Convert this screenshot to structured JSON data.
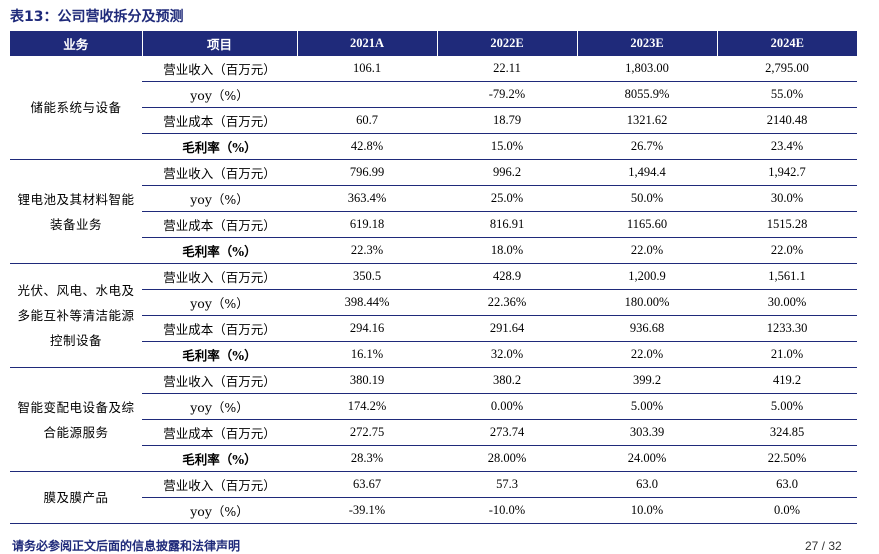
{
  "title": "表13：公司营收拆分及预测",
  "headers": [
    "业务",
    "项目",
    "2021A",
    "2022E",
    "2023E",
    "2024E"
  ],
  "groups": [
    {
      "business": "储能系统与设备",
      "rows": [
        {
          "item": "营业收入（百万元）",
          "values": [
            "106.1",
            "22.11",
            "1,803.00",
            "2,795.00"
          ]
        },
        {
          "item": "yoy（%）",
          "values": [
            "",
            "-79.2%",
            "8055.9%",
            "55.0%"
          ]
        },
        {
          "item": "营业成本（百万元）",
          "values": [
            "60.7",
            "18.79",
            "1321.62",
            "2140.48"
          ]
        },
        {
          "item": "毛利率（%）",
          "values": [
            "42.8%",
            "15.0%",
            "26.7%",
            "23.4%"
          ],
          "bold": true
        }
      ]
    },
    {
      "business": "锂电池及其材料智能装备业务",
      "rows": [
        {
          "item": "营业收入（百万元）",
          "values": [
            "796.99",
            "996.2",
            "1,494.4",
            "1,942.7"
          ]
        },
        {
          "item": "yoy（%）",
          "values": [
            "363.4%",
            "25.0%",
            "50.0%",
            "30.0%"
          ]
        },
        {
          "item": "营业成本（百万元）",
          "values": [
            "619.18",
            "816.91",
            "1165.60",
            "1515.28"
          ]
        },
        {
          "item": "毛利率（%）",
          "values": [
            "22.3%",
            "18.0%",
            "22.0%",
            "22.0%"
          ],
          "bold": true
        }
      ]
    },
    {
      "business": "光伏、风电、水电及多能互补等清洁能源控制设备",
      "rows": [
        {
          "item": "营业收入（百万元）",
          "values": [
            "350.5",
            "428.9",
            "1,200.9",
            "1,561.1"
          ]
        },
        {
          "item": "yoy（%）",
          "values": [
            "398.44%",
            "22.36%",
            "180.00%",
            "30.00%"
          ]
        },
        {
          "item": "营业成本（百万元）",
          "values": [
            "294.16",
            "291.64",
            "936.68",
            "1233.30"
          ]
        },
        {
          "item": "毛利率（%）",
          "values": [
            "16.1%",
            "32.0%",
            "22.0%",
            "21.0%"
          ],
          "bold": true
        }
      ]
    },
    {
      "business": "智能变配电设备及综合能源服务",
      "rows": [
        {
          "item": "营业收入（百万元）",
          "values": [
            "380.19",
            "380.2",
            "399.2",
            "419.2"
          ]
        },
        {
          "item": "yoy（%）",
          "values": [
            "174.2%",
            "0.00%",
            "5.00%",
            "5.00%"
          ]
        },
        {
          "item": "营业成本（百万元）",
          "values": [
            "272.75",
            "273.74",
            "303.39",
            "324.85"
          ]
        },
        {
          "item": "毛利率（%）",
          "values": [
            "28.3%",
            "28.00%",
            "24.00%",
            "22.50%"
          ],
          "bold": true
        }
      ]
    },
    {
      "business": "膜及膜产品",
      "rows": [
        {
          "item": "营业收入（百万元）",
          "values": [
            "63.67",
            "57.3",
            "63.0",
            "63.0"
          ]
        },
        {
          "item": "yoy（%）",
          "values": [
            "-39.1%",
            "-10.0%",
            "10.0%",
            "0.0%"
          ]
        }
      ]
    }
  ],
  "footer": {
    "disclaimer": "请务必参阅正文后面的信息披露和法律声明",
    "page": "27 / 32"
  }
}
